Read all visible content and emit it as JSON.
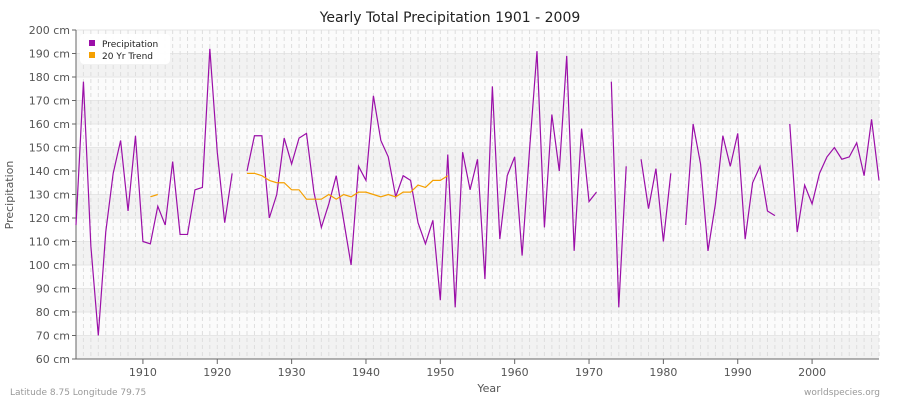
{
  "chart_data": {
    "type": "line",
    "title": "Yearly Total Precipitation 1901 - 2009",
    "xlabel": "Year",
    "ylabel": "Precipitation",
    "y_unit": "cm",
    "xlim": [
      1901,
      2009
    ],
    "ylim": [
      60,
      200
    ],
    "y_ticks": [
      60,
      70,
      80,
      90,
      100,
      110,
      120,
      130,
      140,
      150,
      160,
      170,
      180,
      190,
      200
    ],
    "x_ticks": [
      1910,
      1920,
      1930,
      1940,
      1950,
      1960,
      1970,
      1980,
      1990,
      2000
    ],
    "grid": true,
    "legend_position": "top-left",
    "series": [
      {
        "name": "Precipitation",
        "color": "#9b0fa8",
        "start_year": 1901,
        "values": [
          117,
          178,
          108,
          70,
          114,
          139,
          153,
          123,
          155,
          110,
          109,
          125,
          117,
          144,
          113,
          113,
          132,
          133,
          192,
          148,
          118,
          139,
          null,
          140,
          155,
          155,
          120,
          130,
          154,
          143,
          154,
          156,
          131,
          116,
          126,
          138,
          119,
          100,
          142,
          136,
          172,
          153,
          146,
          129,
          138,
          136,
          118,
          109,
          119,
          85,
          147,
          82,
          148,
          132,
          145,
          94,
          176,
          111,
          138,
          146,
          104,
          149,
          191,
          116,
          164,
          140,
          189,
          106,
          158,
          127,
          131,
          null,
          178,
          82,
          142,
          null,
          145,
          124,
          141,
          110,
          139,
          null,
          117,
          160,
          143,
          106,
          126,
          155,
          142,
          156,
          111,
          135,
          142,
          123,
          121,
          null,
          160,
          114,
          134,
          126,
          139,
          146,
          150,
          145,
          146,
          152,
          138,
          162,
          136
        ]
      },
      {
        "name": "20 Yr Trend",
        "color": "#f5a000",
        "start_year": 1911,
        "values": [
          129,
          130,
          null,
          null,
          null,
          null,
          null,
          null,
          null,
          null,
          null,
          null,
          null,
          139,
          139,
          138,
          136,
          135,
          135,
          132,
          132,
          128,
          128,
          128,
          130,
          128,
          130,
          129,
          131,
          131,
          130,
          129,
          130,
          129,
          131,
          131,
          134,
          133,
          136,
          136,
          138
        ]
      }
    ]
  },
  "footer": {
    "location": "Latitude 8.75 Longitude 79.75",
    "source": "worldspecies.org"
  }
}
